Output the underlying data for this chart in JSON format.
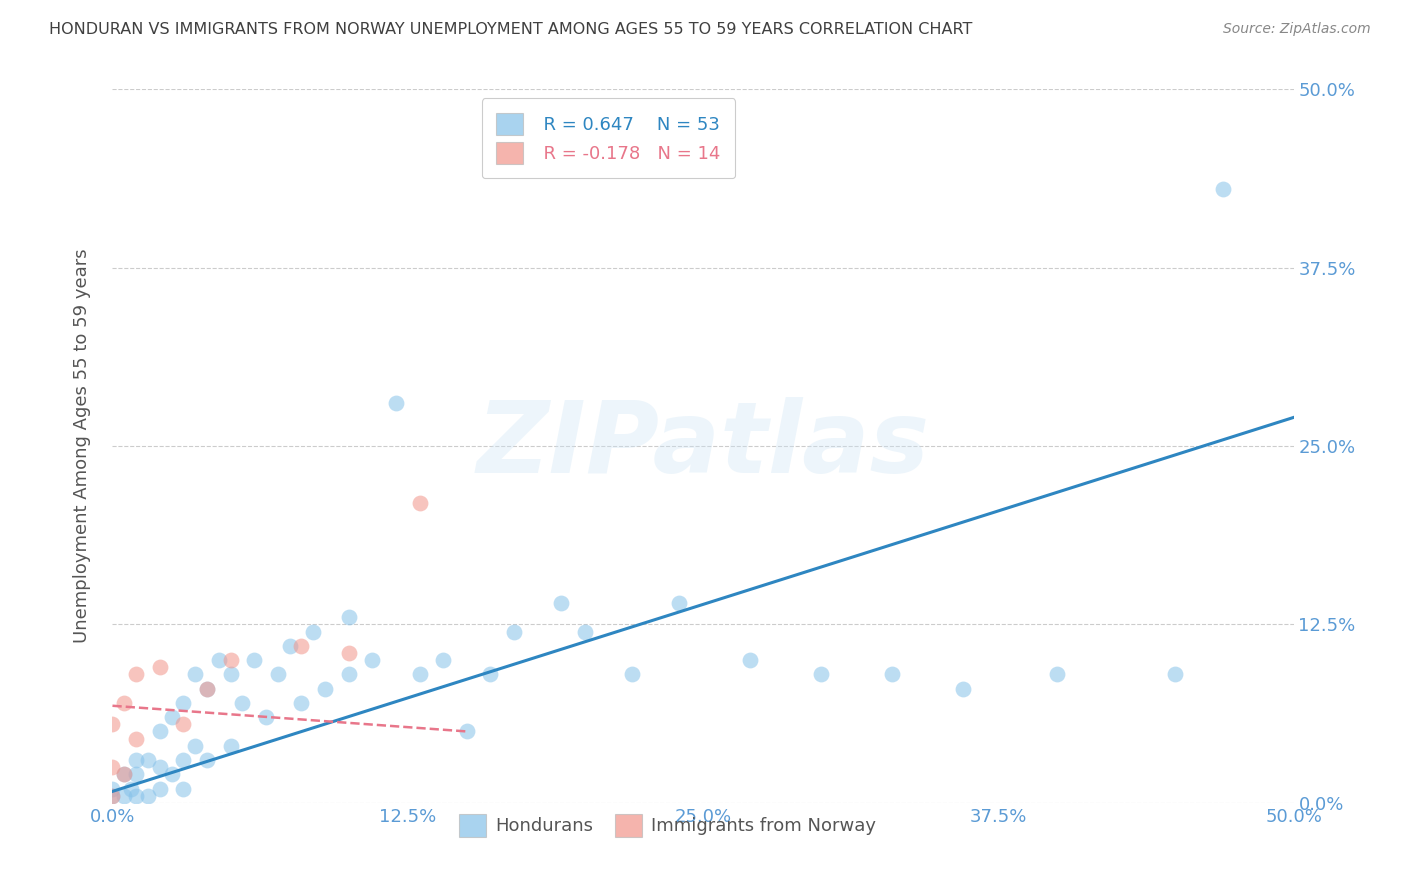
{
  "title": "HONDURAN VS IMMIGRANTS FROM NORWAY UNEMPLOYMENT AMONG AGES 55 TO 59 YEARS CORRELATION CHART",
  "source": "Source: ZipAtlas.com",
  "ylabel": "Unemployment Among Ages 55 to 59 years",
  "tick_vals": [
    0.0,
    0.125,
    0.25,
    0.375,
    0.5
  ],
  "tick_labels": [
    "0.0%",
    "12.5%",
    "25.0%",
    "37.5%",
    "50.0%"
  ],
  "xlim": [
    0.0,
    0.5
  ],
  "ylim": [
    0.0,
    0.5
  ],
  "legend_r_blue": "R = 0.647",
  "legend_n_blue": "N = 53",
  "legend_r_pink": "R = -0.178",
  "legend_n_pink": "N = 14",
  "watermark": "ZIPatlas",
  "blue_color": "#85c1e9",
  "pink_color": "#f1948a",
  "line_blue": "#2e86c1",
  "line_pink": "#e8768a",
  "axis_tick_color": "#5b9bd5",
  "title_color": "#404040",
  "hondurans_label": "Hondurans",
  "norway_label": "Immigrants from Norway",
  "blue_scatter_x": [
    0.0,
    0.0,
    0.005,
    0.005,
    0.008,
    0.01,
    0.01,
    0.01,
    0.015,
    0.015,
    0.02,
    0.02,
    0.02,
    0.025,
    0.025,
    0.03,
    0.03,
    0.03,
    0.035,
    0.035,
    0.04,
    0.04,
    0.045,
    0.05,
    0.05,
    0.055,
    0.06,
    0.065,
    0.07,
    0.075,
    0.08,
    0.085,
    0.09,
    0.1,
    0.1,
    0.11,
    0.12,
    0.13,
    0.14,
    0.15,
    0.16,
    0.17,
    0.19,
    0.2,
    0.22,
    0.24,
    0.27,
    0.3,
    0.33,
    0.36,
    0.4,
    0.45,
    0.47
  ],
  "blue_scatter_y": [
    0.01,
    0.005,
    0.02,
    0.005,
    0.01,
    0.005,
    0.02,
    0.03,
    0.005,
    0.03,
    0.01,
    0.025,
    0.05,
    0.02,
    0.06,
    0.01,
    0.03,
    0.07,
    0.04,
    0.09,
    0.03,
    0.08,
    0.1,
    0.04,
    0.09,
    0.07,
    0.1,
    0.06,
    0.09,
    0.11,
    0.07,
    0.12,
    0.08,
    0.09,
    0.13,
    0.1,
    0.28,
    0.09,
    0.1,
    0.05,
    0.09,
    0.12,
    0.14,
    0.12,
    0.09,
    0.14,
    0.1,
    0.09,
    0.09,
    0.08,
    0.09,
    0.09,
    0.43
  ],
  "pink_scatter_x": [
    0.0,
    0.0,
    0.0,
    0.005,
    0.005,
    0.01,
    0.01,
    0.02,
    0.03,
    0.04,
    0.05,
    0.08,
    0.1,
    0.13
  ],
  "pink_scatter_y": [
    0.005,
    0.025,
    0.055,
    0.02,
    0.07,
    0.045,
    0.09,
    0.095,
    0.055,
    0.08,
    0.1,
    0.11,
    0.105,
    0.21
  ],
  "blue_line_x": [
    0.0,
    0.5
  ],
  "blue_line_y": [
    0.008,
    0.27
  ],
  "pink_line_x": [
    0.0,
    0.15
  ],
  "pink_line_y": [
    0.068,
    0.05
  ],
  "background_color": "#ffffff",
  "grid_color": "#cccccc"
}
